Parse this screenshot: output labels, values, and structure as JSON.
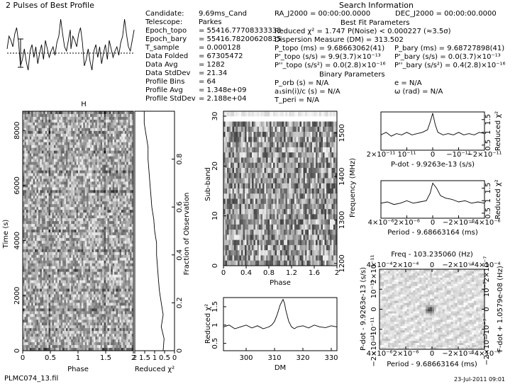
{
  "header": {
    "profile_title": "2 Pulses of Best Profile",
    "search_title": "Search Information",
    "best_fit_title": "Best Fit Parameters",
    "binary_title": "Binary Parameters",
    "footer_file": "PLMC074_13.fil",
    "footer_date": "23-Jul-2011 09:01"
  },
  "info_left": [
    {
      "label": "Candidate:",
      "value": "9.69ms_Cand"
    },
    {
      "label": "Telescope:",
      "value": "Parkes"
    },
    {
      "label": "Epoch_topo",
      "value": "= 55416.77708333333"
    },
    {
      "label": "Epoch_bary",
      "value": "= 55416.78200620835"
    },
    {
      "label": "T_sample",
      "value": "= 0.000128"
    },
    {
      "label": "Data Folded",
      "value": "= 67305472"
    },
    {
      "label": "Data Avg",
      "value": "= 1282"
    },
    {
      "label": "Data StdDev",
      "value": "= 21.34"
    },
    {
      "label": "Profile Bins",
      "value": "= 64"
    },
    {
      "label": "Profile Avg",
      "value": "= 1.348e+09"
    },
    {
      "label": "Profile StdDev",
      "value": "= 2.188e+04"
    }
  ],
  "info_right": {
    "ra": "RA_J2000 = 00:00:00.0000",
    "dec": "DEC_J2000 = 00:00:00.0000",
    "reduced_chi2": "Reduced χ² = 1.747   P(Noise) < 0.000227   (≈3.5σ)",
    "dm": "Dispersion Measure (DM) = 313.502",
    "p_topo": "P_topo (ms) = 9.68663062(41)",
    "p_bary": "P_bary (ms) = 9.68727898(41)",
    "pd_topo": "P'_topo (s/s) = 9.9(3.7)×10⁻¹³",
    "pd_bary": "P'_bary (s/s) = 0.0(3.7)×10⁻¹³",
    "pdd_topo": "P''_topo (s/s²) = 0.0(2.8)×10⁻¹⁶",
    "pdd_bary": "P''_bary (s/s²) = 0.4(2.8)×10⁻¹⁶",
    "p_orb": "P_orb (s) = N/A",
    "ecc": "e = N/A",
    "asini": "a₁sin(i)/c (s) = N/A",
    "omega": "ω (rad) = N/A",
    "t_peri": "T_peri = N/A"
  },
  "chart_data": [
    {
      "name": "profile",
      "type": "line",
      "title": "2 Pulses of Best Profile",
      "x": [
        0,
        0.03,
        0.06,
        0.09,
        0.12,
        0.15,
        0.18,
        0.21,
        0.24,
        0.27,
        0.3,
        0.33,
        0.36,
        0.39,
        0.42,
        0.45,
        0.48,
        0.51,
        0.54,
        0.57,
        0.6,
        0.63,
        0.66,
        0.69,
        0.72,
        0.75,
        0.78,
        0.81,
        0.84,
        0.87,
        0.9,
        0.93,
        0.96,
        0.99
      ],
      "values": [
        0.2,
        0.8,
        0.6,
        0.3,
        0.9,
        1.2,
        0.5,
        -0.6,
        -0.3,
        0.2,
        -0.4,
        -0.8,
        0.1,
        0.4,
        -0.2,
        0.3,
        -0.5,
        0.0,
        0.4,
        -0.3,
        0.6,
        0.2,
        -0.2,
        0.1,
        0.3,
        -0.1,
        0.5,
        0.8,
        1.6,
        0.9,
        0.3,
        0.1,
        0.6,
        1.1
      ]
    },
    {
      "name": "time-phase",
      "type": "heatmap",
      "xlabel": "Phase",
      "ylabel": "Time (s)",
      "xlim": [
        0,
        2
      ],
      "ylim": [
        0,
        8700
      ],
      "xticks": [
        "0",
        "0.5",
        "1",
        "1.5",
        "2"
      ],
      "yticks": [
        "0",
        "2000",
        "4000",
        "6000",
        "8000"
      ]
    },
    {
      "name": "reduced-chi2-vs-time",
      "type": "line",
      "xlabel": "Reduced χ²",
      "y2label": "Fraction of Observation",
      "xticks": [
        "2",
        "1.5",
        "1",
        "0.5",
        "0"
      ],
      "y2ticks": [
        "0",
        "0.2",
        "0.4",
        "0.6",
        "0.8"
      ],
      "fraction": [
        0,
        0.05,
        0.1,
        0.15,
        0.2,
        0.25,
        0.3,
        0.35,
        0.4,
        0.45,
        0.5,
        0.55,
        0.6,
        0.65,
        0.7,
        0.75,
        0.8,
        0.85,
        0.9,
        0.95,
        1.0
      ],
      "chi2": [
        0.6,
        0.55,
        0.7,
        0.6,
        0.7,
        0.8,
        0.85,
        0.9,
        0.95,
        0.95,
        1.05,
        1.1,
        1.2,
        1.25,
        1.3,
        1.35,
        1.4,
        1.4,
        1.5,
        1.6,
        1.6
      ]
    },
    {
      "name": "subband-phase",
      "type": "heatmap",
      "xlabel": "Phase",
      "ylabel": "Sub-band",
      "y2label": "Frequency (MHz)",
      "xticks": [
        "0",
        "0.4",
        "0.8",
        "1.2",
        "1.6",
        "2"
      ],
      "yticks": [
        "0",
        "10",
        "20",
        "30"
      ],
      "y2ticks": [
        "1200",
        "1300",
        "1400",
        "1500"
      ]
    },
    {
      "name": "dm-curve",
      "type": "line",
      "xlabel": "DM",
      "ylabel": "Reduced χ²",
      "xlim": [
        292,
        332
      ],
      "ylim": [
        0.3,
        1.75
      ],
      "xticks": [
        "300",
        "310",
        "320",
        "330"
      ],
      "yticks": [
        "0.5",
        "1",
        "1.5"
      ],
      "x": [
        292,
        294,
        296,
        298,
        300,
        302,
        304,
        306,
        308,
        309,
        310,
        311,
        312,
        313,
        313.5,
        314,
        315,
        316,
        317,
        318,
        320,
        322,
        324,
        326,
        328,
        330,
        332
      ],
      "values": [
        0.95,
        1.0,
        0.9,
        0.95,
        1.0,
        0.92,
        0.98,
        0.9,
        0.95,
        1.0,
        1.1,
        1.3,
        1.55,
        1.7,
        1.6,
        1.4,
        1.1,
        0.95,
        0.9,
        0.95,
        0.98,
        0.92,
        1.0,
        0.95,
        0.93,
        0.98,
        0.95
      ]
    },
    {
      "name": "pdot-curve",
      "type": "line",
      "xlabel": "P-dot - 9.9263e-13 (s/s)",
      "ylabel": "Reduced χ²",
      "xticks": [
        "2×10⁻¹¹",
        "10⁻¹¹",
        "0",
        "−10⁻¹¹",
        "−2×10⁻¹¹"
      ],
      "yticks": [
        "0.5",
        "1",
        "1.5"
      ],
      "x": [
        -2,
        -1.8,
        -1.6,
        -1.4,
        -1.2,
        -1.0,
        -0.8,
        -0.6,
        -0.4,
        -0.2,
        -0.1,
        0,
        0.1,
        0.2,
        0.4,
        0.6,
        0.8,
        1.0,
        1.2,
        1.4,
        1.6,
        1.8,
        2
      ],
      "values": [
        0.9,
        1.0,
        0.85,
        0.95,
        0.9,
        1.0,
        0.9,
        0.95,
        1.0,
        1.1,
        1.4,
        1.75,
        1.3,
        1.0,
        0.9,
        0.95,
        0.9,
        1.0,
        0.9,
        0.95,
        0.9,
        1.0,
        0.95
      ]
    },
    {
      "name": "period-curve",
      "type": "line",
      "xlabel": "Period - 9.68663164 (ms)",
      "ylabel": "Reduced χ²",
      "xticks": [
        "4×10⁻⁶",
        "2×10⁻⁶",
        "0",
        "−2×10⁻⁶",
        "−4×10⁻⁶"
      ],
      "yticks": [
        "0.5",
        "1",
        "1.5"
      ],
      "x": [
        -4,
        -3.5,
        -3,
        -2.5,
        -2,
        -1.5,
        -1,
        -0.5,
        -0.2,
        0,
        0.3,
        0.6,
        1,
        1.5,
        2,
        2.5,
        3,
        3.5,
        4
      ],
      "values": [
        0.9,
        0.95,
        0.85,
        0.9,
        1.0,
        0.9,
        0.95,
        1.0,
        1.3,
        1.7,
        1.5,
        1.2,
        1.1,
        1.05,
        0.95,
        1.0,
        0.9,
        0.95,
        0.9
      ]
    },
    {
      "name": "p-pdot-plane",
      "type": "heatmap",
      "title": "Freq - 103.235060 (Hz)",
      "xlabel": "Period - 9.68663164 (ms)",
      "ylabel": "P-dot - 9.9263e-13 (s/s)",
      "y2label": "F-dot + 1.0579e-08 (Hz)",
      "top_ticks": [
        "4×10⁻⁴",
        "2×10⁻⁴",
        "0",
        "−2×10⁻⁴",
        "−4×10⁻⁴"
      ],
      "bottom_ticks": [
        "4×10⁻⁶",
        "2×10⁻⁶",
        "0",
        "−2×10⁻⁶",
        "−4×10⁻⁶"
      ],
      "left_ticks": [
        "2×10⁻¹¹",
        "10⁻¹¹",
        "0",
        "−10⁻¹¹",
        "−2×10⁻¹¹"
      ],
      "right_ticks": [
        "2×10⁻⁷",
        "10⁻⁷",
        "0",
        "−10⁻⁷",
        "−2×10⁻⁷"
      ]
    }
  ]
}
